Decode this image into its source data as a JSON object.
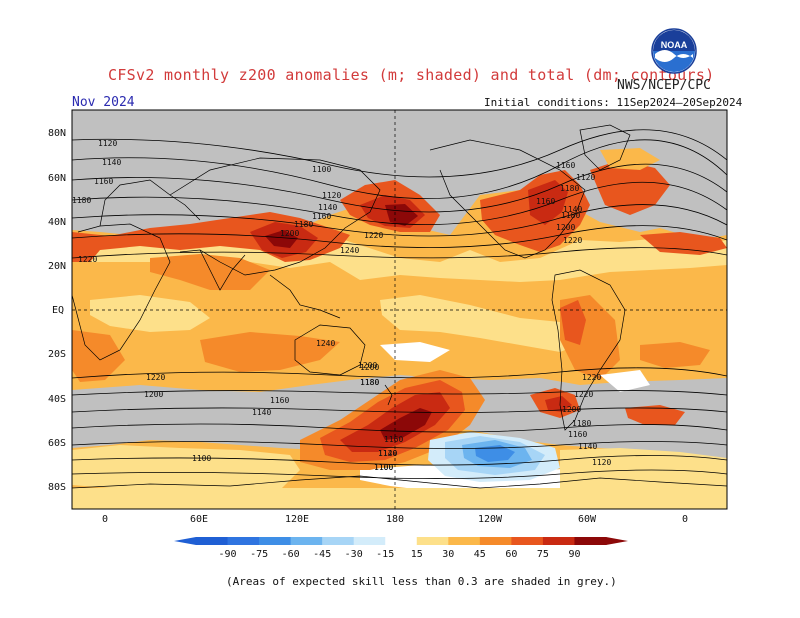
{
  "header": {
    "title": "CFSv2 monthly z200 anomalies (m; shaded) and total (dm; contours)",
    "agency": "NWS/NCEP/CPC",
    "month": "Nov 2024",
    "initial_conditions": "Initial conditions: 11Sep2024–20Sep2024",
    "logo_text": "NOAA"
  },
  "map": {
    "lat_labels": [
      "80N",
      "60N",
      "40N",
      "20N",
      "EQ",
      "20S",
      "40S",
      "60S",
      "80S"
    ],
    "lon_labels": [
      "0",
      "60E",
      "120E",
      "180",
      "120W",
      "60W",
      "0"
    ],
    "contour_labels": [
      "1120",
      "1140",
      "1160",
      "1180",
      "1100",
      "1120",
      "1140",
      "1160",
      "1180",
      "1200",
      "1240",
      "1220",
      "1220",
      "1240",
      "1160",
      "1180",
      "1200",
      "1220",
      "1140",
      "1120",
      "1160",
      "1180",
      "1200",
      "1220",
      "1220",
      "1200",
      "1180",
      "1160",
      "1140",
      "1220",
      "1200",
      "1180",
      "1160",
      "1140",
      "1120",
      "1100",
      "1100",
      "1200",
      "1180",
      "1160",
      "1140",
      "1120",
      "1100"
    ],
    "colors": {
      "grey": "#c0c0c0",
      "p15": "#fde08a",
      "p30": "#fbb84a",
      "p45": "#f58a2a",
      "p60": "#e8561e",
      "p75": "#c92a12",
      "p90": "#8c0808",
      "n15": "#d3ecfa",
      "n30": "#a7d5f6",
      "n45": "#6cb4ef",
      "n60": "#3e8ee6",
      "land": "#000000"
    }
  },
  "colorbar": {
    "ticks": [
      "-90",
      "-75",
      "-60",
      "-45",
      "-30",
      "-15",
      "15",
      "30",
      "45",
      "60",
      "75",
      "90"
    ],
    "colors": [
      "#1f5fd4",
      "#2f74e0",
      "#3e8ee6",
      "#6cb4ef",
      "#a7d5f6",
      "#d3ecfa",
      "#ffffff",
      "#fde08a",
      "#fbb84a",
      "#f58a2a",
      "#e8561e",
      "#c92a12",
      "#8c0808"
    ]
  },
  "footnote": "(Areas of expected skill less than 0.3 are shaded in grey.)"
}
